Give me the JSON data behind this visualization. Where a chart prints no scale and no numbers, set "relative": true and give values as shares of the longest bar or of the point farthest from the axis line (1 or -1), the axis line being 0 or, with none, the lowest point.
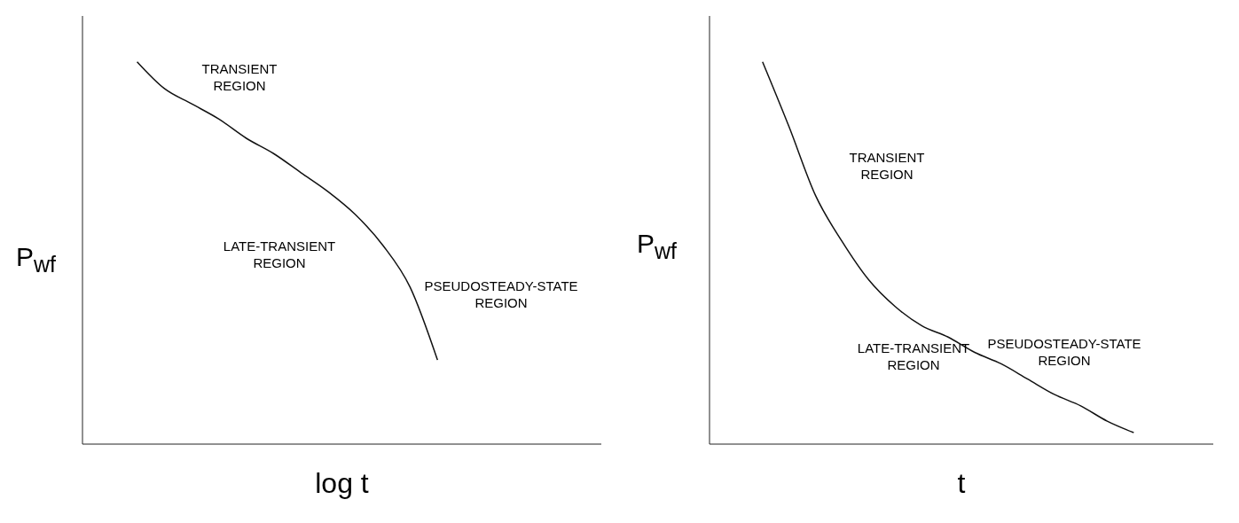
{
  "chart_data": [
    {
      "type": "line",
      "relative": true,
      "xlabel": "log t",
      "ylabel": "P$_{wf}$",
      "categories": [
        null,
        null,
        null,
        null,
        null,
        null,
        null,
        null,
        null,
        null,
        null,
        null,
        null,
        null,
        null,
        null,
        null,
        null,
        null,
        null
      ],
      "series": [
        {
          "color": "#111111",
          "values": [
            null,
            null,
            1.0,
            0.93,
            0.89,
            0.85,
            0.8,
            0.76,
            0.71,
            0.66,
            0.6,
            0.52,
            0.41,
            0.22,
            null,
            null,
            null,
            null,
            null,
            null
          ]
        }
      ],
      "annotations": [
        "TRANSIENT REGION",
        "LATE-TRANSIENT REGION",
        "PSEUDOSTEADY-STATE REGION"
      ],
      "grid": false,
      "legend": false,
      "marker": "none"
    },
    {
      "type": "line",
      "relative": true,
      "xlabel": "t",
      "ylabel": "P$_{wf}$",
      "categories": [
        null,
        null,
        null,
        null,
        null,
        null,
        null,
        null,
        null,
        null,
        null,
        null,
        null,
        null,
        null,
        null,
        null,
        null,
        null,
        null
      ],
      "series": [
        {
          "color": "#111111",
          "values": [
            null,
            null,
            1.0,
            0.83,
            0.65,
            0.53,
            0.43,
            0.36,
            0.31,
            0.28,
            0.24,
            0.21,
            0.17,
            0.13,
            0.1,
            0.06,
            0.03,
            null,
            null,
            null
          ]
        }
      ],
      "annotations": [
        "TRANSIENT REGION",
        "LATE-TRANSIENT REGION",
        "PSEUDOSTEADY-STATE REGION"
      ],
      "grid": false,
      "legend": false,
      "marker": "none"
    }
  ]
}
